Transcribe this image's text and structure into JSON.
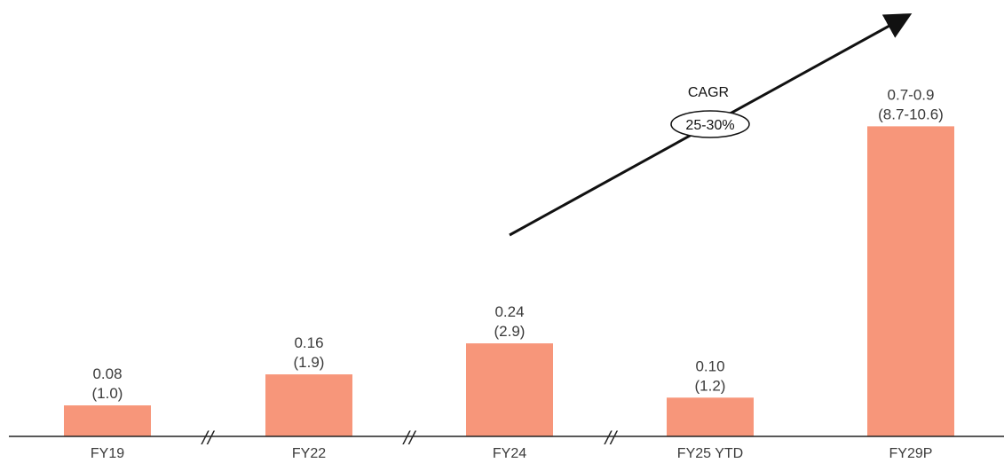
{
  "chart_data": {
    "type": "bar",
    "title": "",
    "xlabel": "",
    "ylabel": "",
    "ylim": [
      0,
      1.0
    ],
    "grid": false,
    "legend": "none",
    "bar_color": "#F7967A",
    "axis_color": "#222222",
    "categories": [
      "FY19",
      "FY22",
      "FY24",
      "FY25 YTD",
      "FY29P"
    ],
    "values": [
      0.08,
      0.16,
      0.24,
      0.1,
      0.8
    ],
    "value_labels": [
      "0.08",
      "0.16",
      "0.24",
      "0.10",
      "0.7-0.9"
    ],
    "secondary_labels": [
      "(1.0)",
      "(1.9)",
      "(2.9)",
      "(1.2)",
      "(8.7-10.6)"
    ],
    "axis_breaks": [
      "//",
      "//",
      "//"
    ],
    "annotation": {
      "title": "CAGR",
      "value": "25-30%"
    }
  }
}
